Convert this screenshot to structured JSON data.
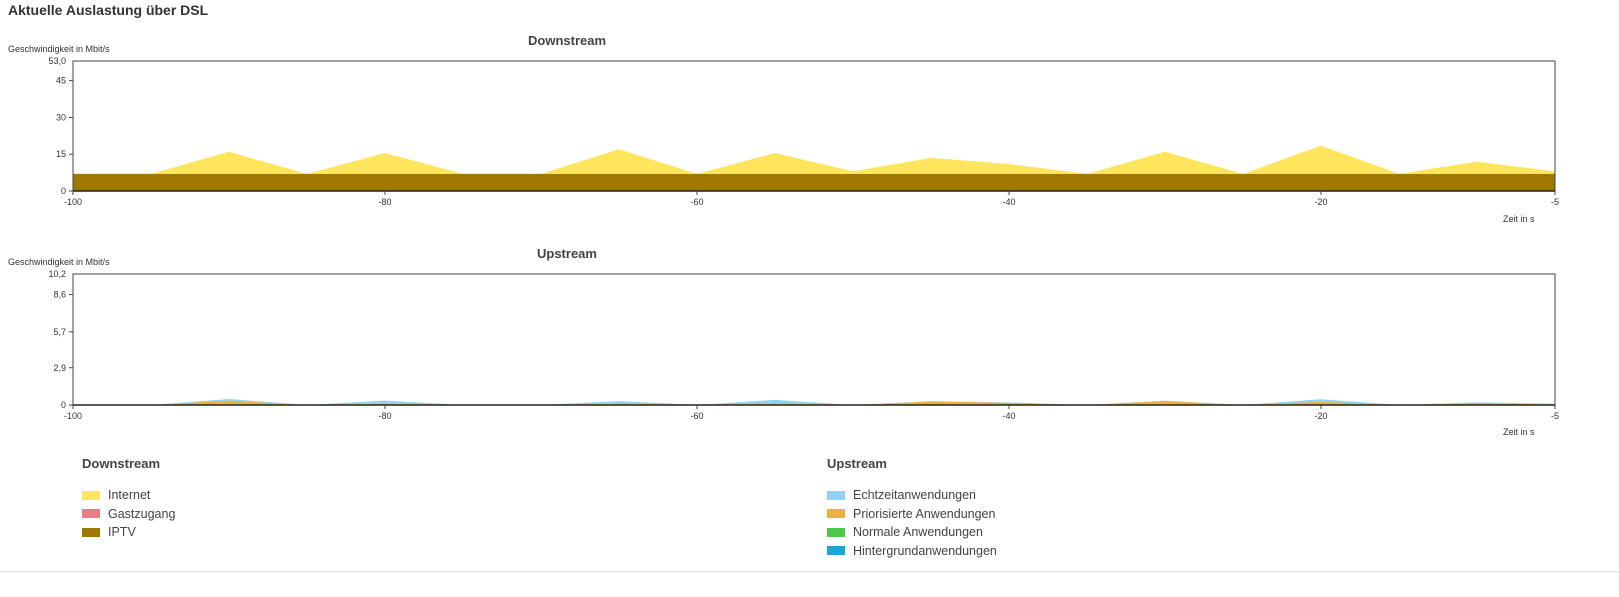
{
  "page_title": "Aktuelle Auslastung über DSL",
  "chart_data": [
    {
      "type": "area",
      "title": "Downstream",
      "ylabel": "Geschwindigkeit in Mbit/s",
      "xlabel": "Zeit in s",
      "xlim": [
        -100,
        -5
      ],
      "ylim": [
        0,
        53.0
      ],
      "x_ticks": [
        -100,
        -80,
        -60,
        -40,
        -20,
        -5
      ],
      "y_ticks": [
        0,
        15,
        30,
        45
      ],
      "y_tick_labels": [
        "0",
        "15",
        "30",
        "45"
      ],
      "y_max_label": "53,0",
      "stacked": true,
      "x": [
        -100,
        -95,
        -90,
        -85,
        -80,
        -75,
        -70,
        -65,
        -60,
        -55,
        -50,
        -45,
        -40,
        -35,
        -30,
        -25,
        -20,
        -15,
        -10,
        -5
      ],
      "series": [
        {
          "name": "IPTV",
          "color": "#a07800",
          "values": [
            7,
            7,
            7,
            7,
            7,
            7,
            7,
            7,
            7,
            7,
            7,
            7,
            7,
            7,
            7,
            7,
            7,
            7,
            7,
            7
          ]
        },
        {
          "name": "Internet",
          "color": "#fee55c",
          "values": [
            0,
            0,
            9,
            0,
            8.5,
            0,
            0,
            10,
            0,
            8.5,
            1,
            6.5,
            4,
            0,
            9,
            0,
            11.5,
            0,
            5,
            1
          ]
        }
      ]
    },
    {
      "type": "area",
      "title": "Upstream",
      "ylabel": "Geschwindigkeit in Mbit/s",
      "xlabel": "Zeit in s",
      "xlim": [
        -100,
        -5
      ],
      "ylim": [
        0,
        10.2
      ],
      "x_ticks": [
        -100,
        -80,
        -60,
        -40,
        -20,
        -5
      ],
      "y_ticks": [
        0,
        2.9,
        5.7,
        8.6
      ],
      "y_tick_labels": [
        "0",
        "2,9",
        "5,7",
        "8,6"
      ],
      "y_max_label": "10,2",
      "stacked": true,
      "x": [
        -100,
        -95,
        -90,
        -85,
        -80,
        -75,
        -70,
        -65,
        -60,
        -55,
        -50,
        -45,
        -40,
        -35,
        -30,
        -25,
        -20,
        -15,
        -10,
        -5
      ],
      "series": [
        {
          "name": "Priorisierte Anwendungen",
          "color": "#e8b23c",
          "values": [
            0,
            0,
            0.35,
            0,
            0.12,
            0,
            0,
            0.12,
            0,
            0.15,
            0,
            0.28,
            0.18,
            0,
            0.32,
            0,
            0.25,
            0,
            0.18,
            0.05
          ]
        },
        {
          "name": "Echtzeitanwendungen",
          "color": "#8fd2f5",
          "values": [
            0,
            0,
            0.12,
            0,
            0.22,
            0,
            0,
            0.18,
            0,
            0.25,
            0,
            0.02,
            0.02,
            0,
            0.02,
            0,
            0.2,
            0,
            0.02,
            0.05
          ]
        }
      ]
    }
  ],
  "legend": {
    "downstream": {
      "title": "Downstream",
      "items": [
        {
          "label": "Internet",
          "color": "#fee55c"
        },
        {
          "label": "Gastzugang",
          "color": "#ef7b84"
        },
        {
          "label": "IPTV",
          "color": "#a07800"
        }
      ]
    },
    "upstream": {
      "title": "Upstream",
      "items": [
        {
          "label": "Echtzeitanwendungen",
          "color": "#8fd2f5"
        },
        {
          "label": "Priorisierte Anwendungen",
          "color": "#e8b23c"
        },
        {
          "label": "Normale Anwendungen",
          "color": "#4cc84c"
        },
        {
          "label": "Hintergrundanwendungen",
          "color": "#1ea4d8"
        }
      ]
    }
  }
}
